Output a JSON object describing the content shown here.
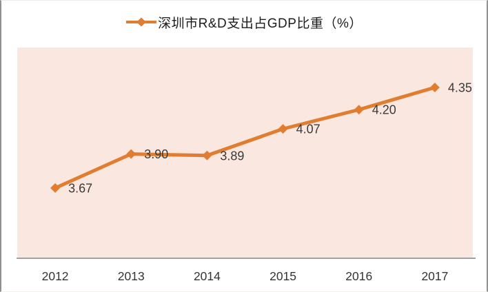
{
  "chart_data": {
    "type": "line",
    "title": "深圳市R&D支出占GDP比重（%）",
    "categories": [
      "2012",
      "2013",
      "2014",
      "2015",
      "2016",
      "2017"
    ],
    "series": [
      {
        "name": "深圳市R&D支出占GDP比重（%）",
        "values": [
          3.67,
          3.9,
          3.89,
          4.07,
          4.2,
          4.35
        ],
        "labels": [
          "3.67",
          "3.90",
          "3.89",
          "4.07",
          "4.20",
          "4.35"
        ]
      }
    ],
    "xlabel": "",
    "ylabel": "",
    "ylim": [
      3.2,
      4.62
    ],
    "grid": false,
    "legend_position": "top-center",
    "marker": "diamond"
  },
  "colors": {
    "series_orange": "#e07d30",
    "plot_background_pink": "#f9e7e0",
    "axis_line_gray": "#808080",
    "data_label_text": "#3a3a3a",
    "axis_label_text": "#333333",
    "legend_text": "#1c1c1c"
  }
}
